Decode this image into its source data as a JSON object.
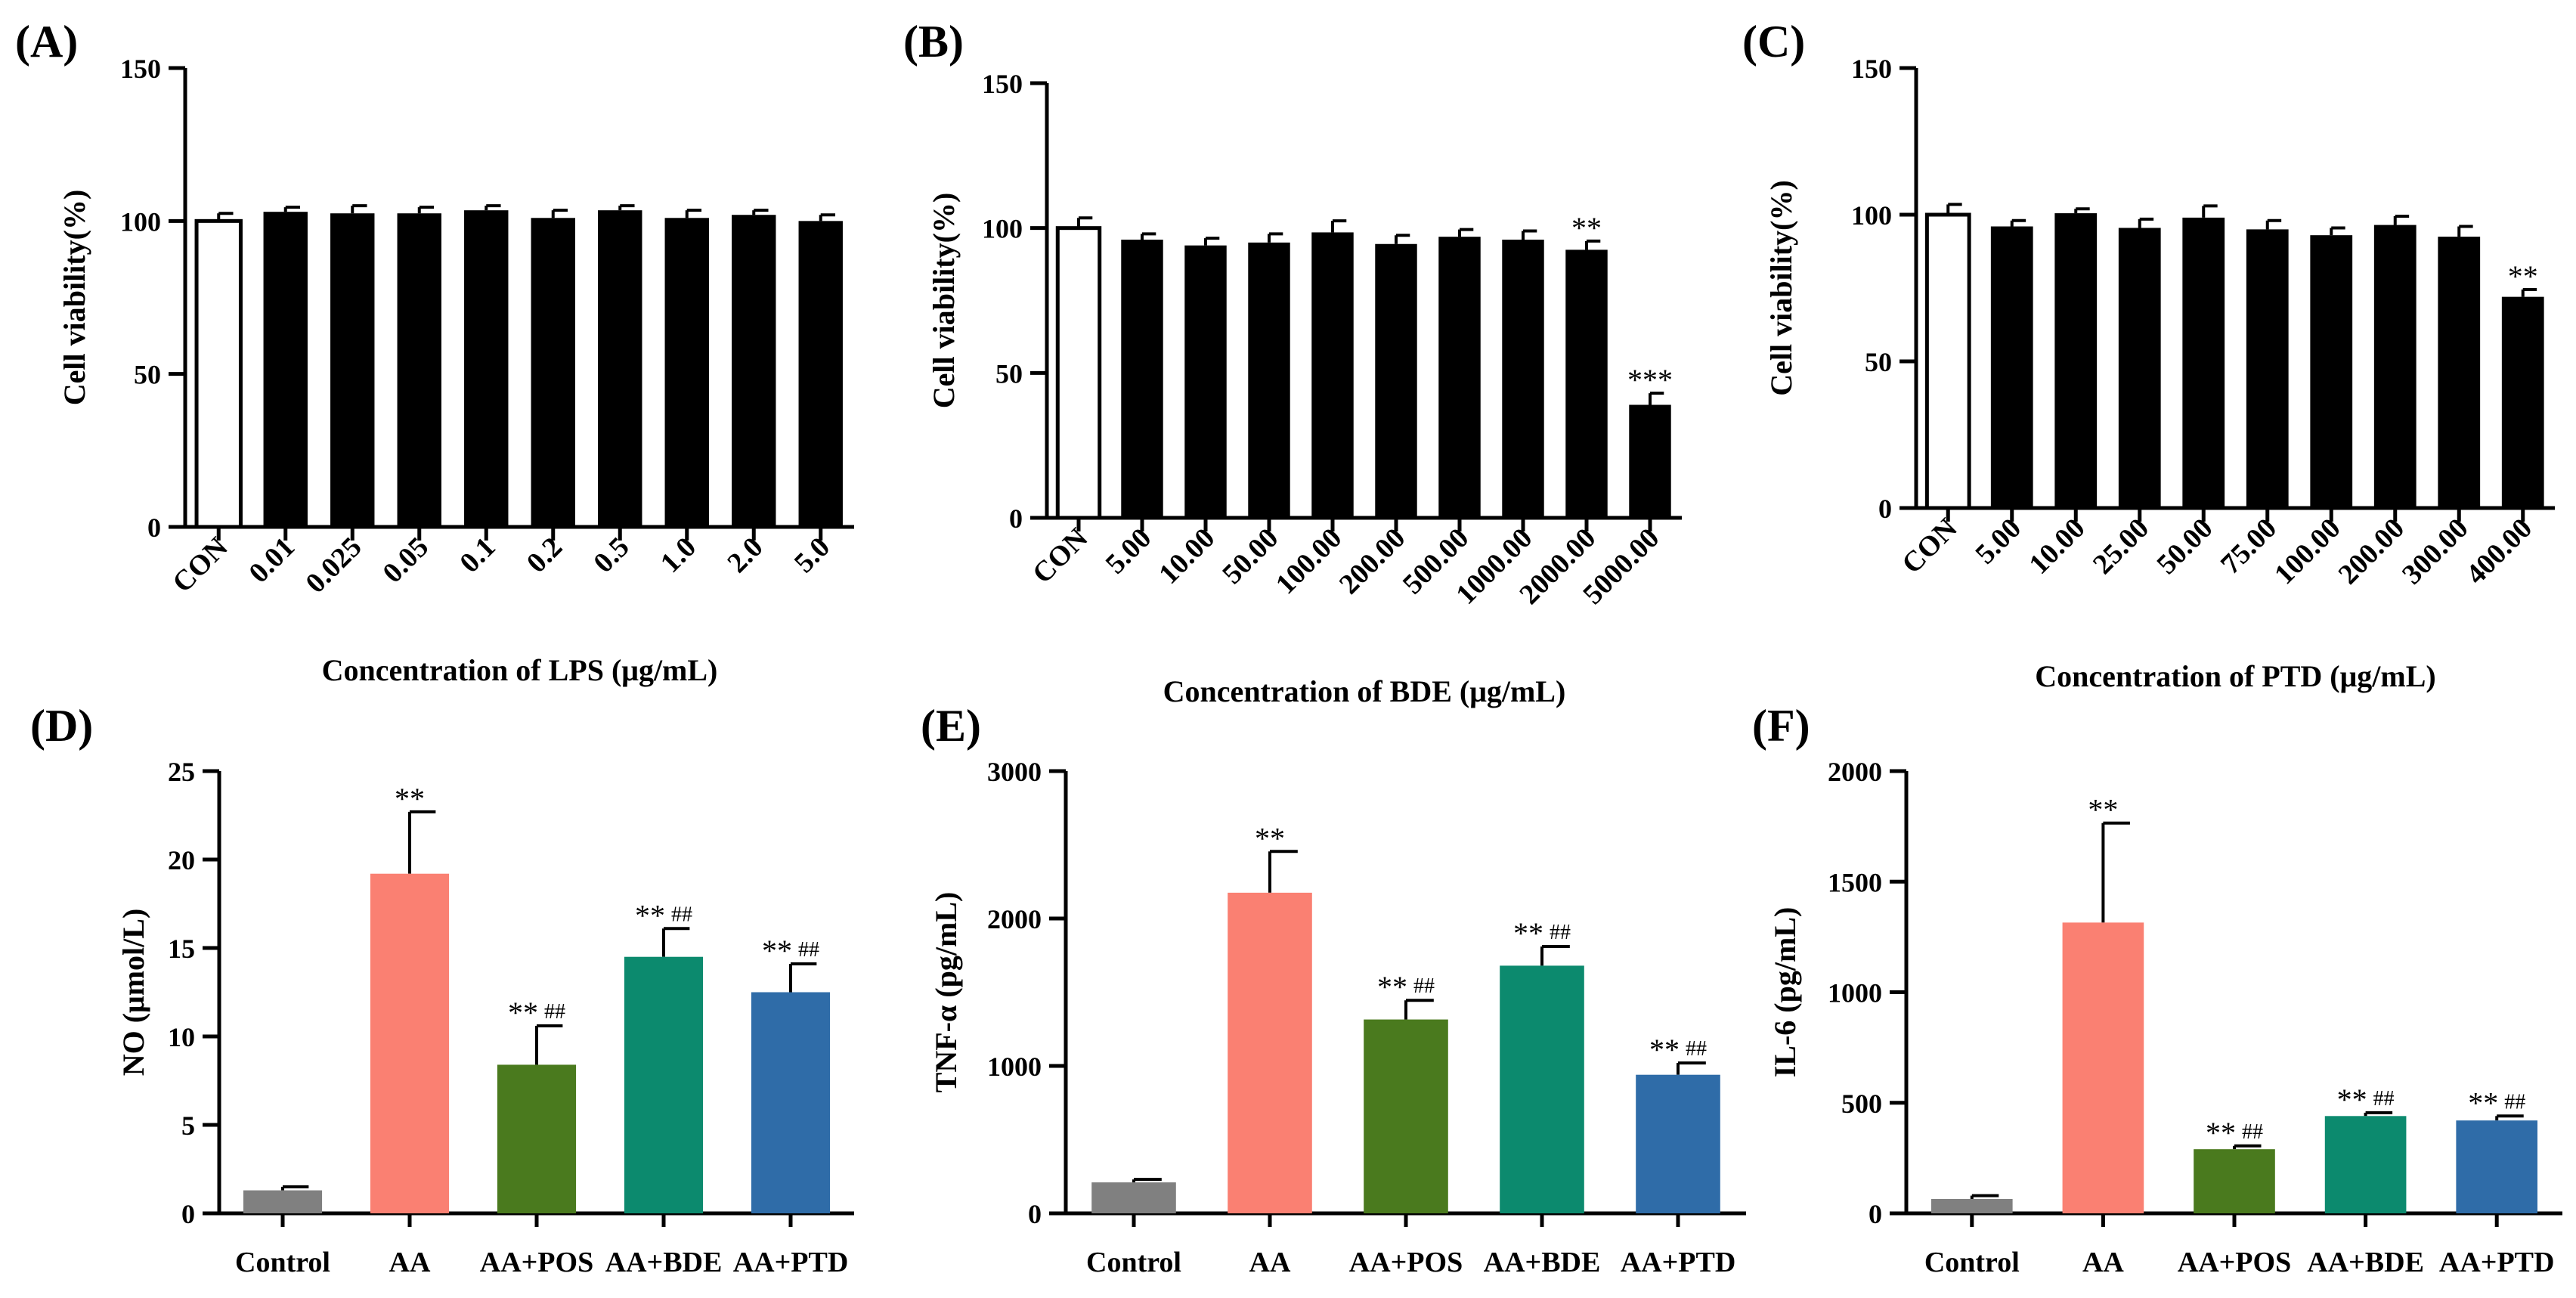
{
  "chart_data": [
    {
      "type": "bar",
      "panel": "(A)",
      "ylabel": "Cell viability(%)",
      "xlabel": "Concentration of LPS (μg/mL)",
      "ylim": [
        0,
        150
      ],
      "yticks": [
        0,
        50,
        100,
        150
      ],
      "rotate_categories": true,
      "categories": [
        "CON",
        "0.01",
        "0.025",
        "0.05",
        "0.1",
        "0.2",
        "0.5",
        "1.0",
        "2.0",
        "5.0"
      ],
      "values": [
        100,
        103,
        102.5,
        102.5,
        103.5,
        101,
        103.5,
        101,
        102,
        100
      ],
      "errors": [
        2.5,
        1.5,
        2.5,
        2,
        1.5,
        2.5,
        1.5,
        2.5,
        1.5,
        2
      ],
      "fills": [
        "#ffffff",
        "#000000",
        "#000000",
        "#000000",
        "#000000",
        "#000000",
        "#000000",
        "#000000",
        "#000000",
        "#000000"
      ],
      "annotations": [
        "",
        "",
        "",
        "",
        "",
        "",
        "",
        "",
        "",
        ""
      ],
      "hash_annotations": [
        "",
        "",
        "",
        "",
        "",
        "",
        "",
        "",
        "",
        ""
      ]
    },
    {
      "type": "bar",
      "panel": "(B)",
      "ylabel": "Cell viability(%)",
      "xlabel": "Concentration of BDE (μg/mL)",
      "ylim": [
        0,
        150
      ],
      "yticks": [
        0,
        50,
        100,
        150
      ],
      "rotate_categories": true,
      "categories": [
        "CON",
        "5.00",
        "10.00",
        "50.00",
        "100.00",
        "200.00",
        "500.00",
        "1000.00",
        "2000.00",
        "5000.00"
      ],
      "values": [
        100,
        96,
        94,
        95,
        98.5,
        94.5,
        97,
        96,
        92.5,
        39
      ],
      "errors": [
        3.5,
        2,
        2.5,
        3,
        4,
        3,
        2.5,
        3,
        3,
        4
      ],
      "fills": [
        "#ffffff",
        "#000000",
        "#000000",
        "#000000",
        "#000000",
        "#000000",
        "#000000",
        "#000000",
        "#000000",
        "#000000"
      ],
      "annotations": [
        "",
        "",
        "",
        "",
        "",
        "",
        "",
        "",
        "**",
        "***"
      ],
      "hash_annotations": [
        "",
        "",
        "",
        "",
        "",
        "",
        "",
        "",
        "",
        ""
      ]
    },
    {
      "type": "bar",
      "panel": "(C)",
      "ylabel": "Cell viability(%)",
      "xlabel": "Concentration of PTD (μg/mL)",
      "ylim": [
        0,
        150
      ],
      "yticks": [
        0,
        50,
        100,
        150
      ],
      "rotate_categories": true,
      "categories": [
        "CON",
        "5.00",
        "10.00",
        "25.00",
        "50.00",
        "75.00",
        "100.00",
        "200.00",
        "300.00",
        "400.00"
      ],
      "values": [
        100,
        96,
        100.5,
        95.5,
        99,
        95,
        93,
        96.5,
        92.5,
        72
      ],
      "errors": [
        3.5,
        2,
        1.5,
        3,
        4,
        3,
        2.5,
        3,
        3.5,
        2.5
      ],
      "fills": [
        "#ffffff",
        "#000000",
        "#000000",
        "#000000",
        "#000000",
        "#000000",
        "#000000",
        "#000000",
        "#000000",
        "#000000"
      ],
      "annotations": [
        "",
        "",
        "",
        "",
        "",
        "",
        "",
        "",
        "",
        "**"
      ],
      "hash_annotations": [
        "",
        "",
        "",
        "",
        "",
        "",
        "",
        "",
        "",
        ""
      ]
    },
    {
      "type": "bar",
      "panel": "(D)",
      "ylabel": "NO (μmol/L)",
      "xlabel": "",
      "ylim": [
        0,
        25
      ],
      "yticks": [
        0,
        5,
        10,
        15,
        20,
        25
      ],
      "rotate_categories": false,
      "categories": [
        "Control",
        "AA",
        "AA+POS",
        "AA+BDE",
        "AA+PTD"
      ],
      "values": [
        1.3,
        19.2,
        8.4,
        14.5,
        12.5
      ],
      "errors": [
        0.2,
        3.5,
        2.2,
        1.6,
        1.6
      ],
      "fills": [
        "#808080",
        "#fa8072",
        "#4a7a1e",
        "#0c8a6e",
        "#2f6ca8"
      ],
      "annotations": [
        "",
        "**",
        "**",
        "**",
        "**"
      ],
      "hash_annotations": [
        "",
        "",
        "##",
        "##",
        "##"
      ]
    },
    {
      "type": "bar",
      "panel": "(E)",
      "ylabel": "TNF-α (pg/mL)",
      "xlabel": "",
      "ylim": [
        0,
        3000
      ],
      "yticks": [
        0,
        1000,
        2000,
        3000
      ],
      "rotate_categories": false,
      "categories": [
        "Control",
        "AA",
        "AA+POS",
        "AA+BDE",
        "AA+PTD"
      ],
      "values": [
        210,
        2175,
        1315,
        1680,
        940
      ],
      "errors": [
        20,
        280,
        130,
        130,
        80
      ],
      "fills": [
        "#808080",
        "#fa8072",
        "#4a7a1e",
        "#0c8a6e",
        "#2f6ca8"
      ],
      "annotations": [
        "",
        "**",
        "**",
        "**",
        "**"
      ],
      "hash_annotations": [
        "",
        "",
        "##",
        "##",
        "##"
      ]
    },
    {
      "type": "bar",
      "panel": "(F)",
      "ylabel": "IL-6 (pg/mL)",
      "xlabel": "",
      "ylim": [
        0,
        2000
      ],
      "yticks": [
        0,
        500,
        1000,
        1500,
        2000
      ],
      "rotate_categories": false,
      "categories": [
        "Control",
        "AA",
        "AA+POS",
        "AA+BDE",
        "AA+PTD"
      ],
      "values": [
        65,
        1315,
        290,
        440,
        420
      ],
      "errors": [
        15,
        450,
        15,
        15,
        20
      ],
      "fills": [
        "#808080",
        "#fa8072",
        "#4a7a1e",
        "#0c8a6e",
        "#2f6ca8"
      ],
      "annotations": [
        "",
        "**",
        "**",
        "**",
        "**"
      ],
      "hash_annotations": [
        "",
        "",
        "##",
        "##",
        "##"
      ]
    }
  ]
}
